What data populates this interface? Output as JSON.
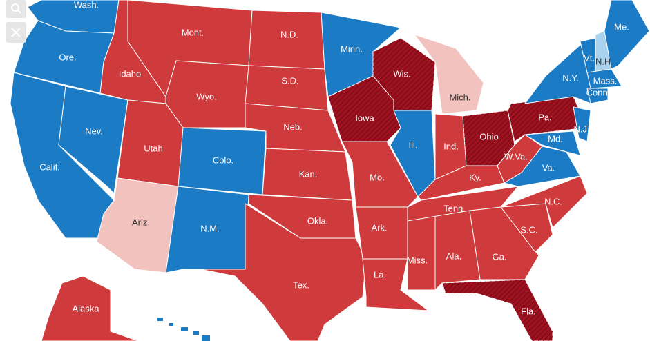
{
  "map": {
    "states": [
      {
        "label": "Wash.",
        "color": "#1b7bc5"
      },
      {
        "label": "Ore.",
        "color": "#1b7bc5"
      },
      {
        "label": "Calif.",
        "color": "#1b7bc5"
      },
      {
        "label": "Nev.",
        "color": "#1b7bc5"
      },
      {
        "label": "Idaho",
        "color": "#cf3a3c"
      },
      {
        "label": "Mont.",
        "color": "#cf3a3c"
      },
      {
        "label": "Wyo.",
        "color": "#cf3a3c"
      },
      {
        "label": "Utah",
        "color": "#cf3a3c"
      },
      {
        "label": "Ariz.",
        "color": "#f2c2bf"
      },
      {
        "label": "Colo.",
        "color": "#1b7bc5"
      },
      {
        "label": "N.M.",
        "color": "#1b7bc5"
      },
      {
        "label": "N.D.",
        "color": "#cf3a3c"
      },
      {
        "label": "S.D.",
        "color": "#cf3a3c"
      },
      {
        "label": "Neb.",
        "color": "#cf3a3c"
      },
      {
        "label": "Kan.",
        "color": "#cf3a3c"
      },
      {
        "label": "Okla.",
        "color": "#cf3a3c"
      },
      {
        "label": "Tex.",
        "color": "#cf3a3c"
      },
      {
        "label": "Minn.",
        "color": "#1b7bc5"
      },
      {
        "label": "Iowa",
        "color": "#a0111f",
        "hatched": true
      },
      {
        "label": "Wis.",
        "color": "#a0111f",
        "hatched": true
      },
      {
        "label": "Mich.",
        "color": "#f2c2bf"
      },
      {
        "label": "Ill.",
        "color": "#1b7bc5"
      },
      {
        "label": "Ind.",
        "color": "#cf3a3c"
      },
      {
        "label": "Ohio",
        "color": "#a0111f",
        "hatched": true
      },
      {
        "label": "Mo.",
        "color": "#cf3a3c"
      },
      {
        "label": "Ark.",
        "color": "#cf3a3c"
      },
      {
        "label": "La.",
        "color": "#cf3a3c"
      },
      {
        "label": "Miss.",
        "color": "#cf3a3c"
      },
      {
        "label": "Ala.",
        "color": "#cf3a3c"
      },
      {
        "label": "Ga.",
        "color": "#cf3a3c"
      },
      {
        "label": "Fla.",
        "color": "#a0111f",
        "hatched": true
      },
      {
        "label": "S.C.",
        "color": "#cf3a3c"
      },
      {
        "label": "N.C.",
        "color": "#cf3a3c"
      },
      {
        "label": "Tenn.",
        "color": "#cf3a3c"
      },
      {
        "label": "Ky.",
        "color": "#cf3a3c"
      },
      {
        "label": "W.Va.",
        "color": "#cf3a3c"
      },
      {
        "label": "Va.",
        "color": "#1b7bc5"
      },
      {
        "label": "Pa.",
        "color": "#a0111f",
        "hatched": true
      },
      {
        "label": "Md.",
        "color": "#1b7bc5"
      },
      {
        "label": "N.J.",
        "color": "#1b7bc5"
      },
      {
        "label": "N.Y.",
        "color": "#1b7bc5"
      },
      {
        "label": "Vt.",
        "color": "#1b7bc5"
      },
      {
        "label": "N.H.",
        "color": "#a9d2ef"
      },
      {
        "label": "Me.",
        "color": "#1b7bc5"
      },
      {
        "label": "Mass.",
        "color": "#1b7bc5"
      },
      {
        "label": "Conn.",
        "color": "#1b7bc5"
      },
      {
        "label": "Alaska",
        "color": "#cf3a3c"
      }
    ]
  }
}
